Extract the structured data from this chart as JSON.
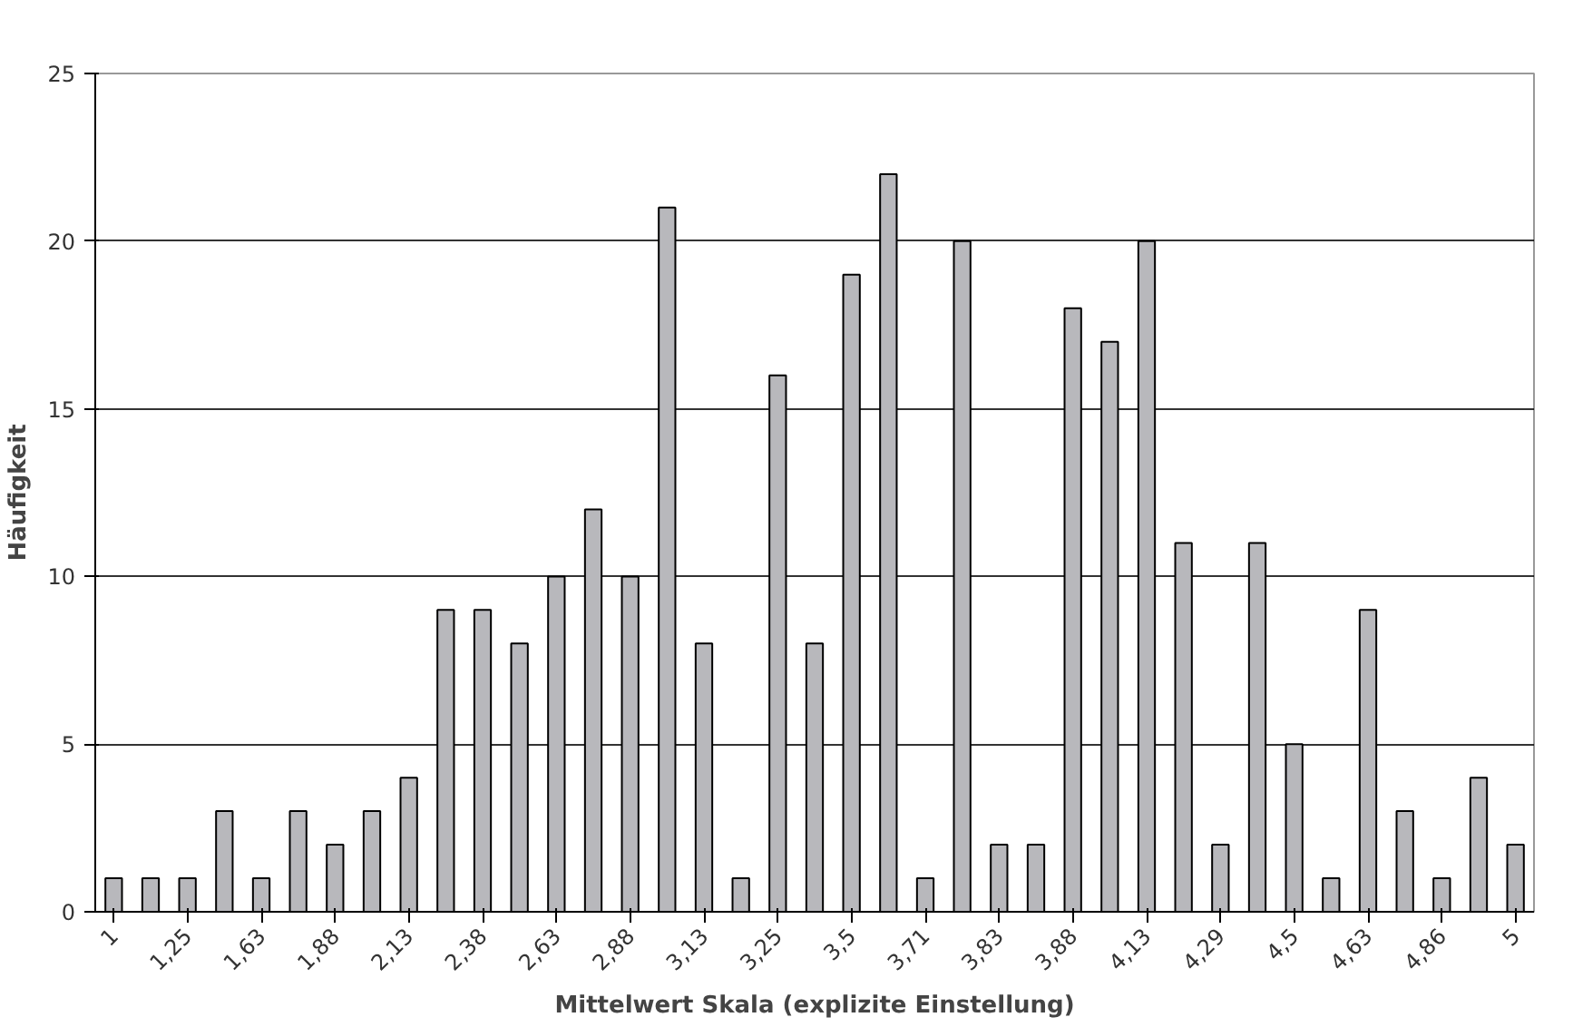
{
  "chart_data": {
    "type": "bar",
    "xlabel": "Mittelwert Skala (explizite Einstellung)",
    "ylabel": "Häufigkeit",
    "categories": [
      "1",
      null,
      "1,25",
      null,
      "1,63",
      null,
      "1,88",
      null,
      "2,13",
      null,
      "2,38",
      null,
      "2,63",
      null,
      "2,88",
      null,
      "3,13",
      null,
      "3,25",
      null,
      "3,5",
      null,
      "3,71",
      null,
      "3,83",
      null,
      "3,88",
      null,
      "4,13",
      null,
      "4,29",
      null,
      "4,5",
      null,
      "4,63",
      null,
      "4,86",
      null,
      "5"
    ],
    "values": [
      1,
      1,
      1,
      3,
      1,
      3,
      2,
      3,
      4,
      9,
      9,
      8,
      10,
      12,
      10,
      21,
      8,
      1,
      16,
      8,
      19,
      22,
      1,
      20,
      2,
      2,
      18,
      17,
      20,
      11,
      2,
      11,
      5,
      1,
      9,
      3,
      1,
      4,
      2
    ],
    "color": "#b8b8bc",
    "ylim": [
      0,
      25
    ],
    "yticks": [
      0,
      5,
      10,
      15,
      20,
      25
    ],
    "grid": "y"
  }
}
